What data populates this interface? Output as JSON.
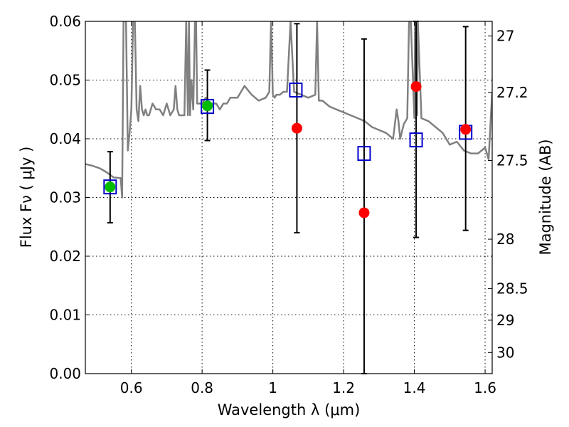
{
  "chart_data": {
    "type": "scatter",
    "xlabel": "Wavelength  λ (μm)",
    "ylabel": "Flux  Fν  ( μJy )",
    "ylabel_right": "Magnitude (AB)",
    "xlim": [
      0.47,
      1.62
    ],
    "ylim": [
      0.0,
      0.06
    ],
    "x_ticks": [
      0.6,
      0.8,
      1.0,
      1.2,
      1.4,
      1.6
    ],
    "x_tick_labels": [
      "0.6",
      "0.8",
      "1",
      "1.2",
      "1.4",
      "1.6"
    ],
    "y_ticks": [
      0.0,
      0.01,
      0.02,
      0.03,
      0.04,
      0.05,
      0.06
    ],
    "y_tick_labels": [
      "0.00",
      "0.01",
      "0.02",
      "0.03",
      "0.04",
      "0.05",
      "0.06"
    ],
    "right_ticks": [
      {
        "label": "27",
        "flux": 0.0575
      },
      {
        "label": "27.2",
        "flux": 0.0479
      },
      {
        "label": "27.5",
        "flux": 0.0363
      },
      {
        "label": "28",
        "flux": 0.0229
      },
      {
        "label": "28.5",
        "flux": 0.0145
      },
      {
        "label": "29",
        "flux": 0.0091
      },
      {
        "label": "30",
        "flux": 0.0036
      }
    ],
    "grid": true,
    "colors": {
      "model": "#808080",
      "model_photometry": "#0000cc",
      "detection": "#00bb00",
      "non_detection": "#ff0000",
      "errorbar": "#000000"
    },
    "series": [
      {
        "kind": "model_spectrum",
        "x": [
          0.47,
          0.49,
          0.51,
          0.53,
          0.55,
          0.57,
          0.574,
          0.578,
          0.58,
          0.585,
          0.59,
          0.595,
          0.6,
          0.605,
          0.61,
          0.615,
          0.62,
          0.625,
          0.63,
          0.635,
          0.64,
          0.645,
          0.65,
          0.66,
          0.67,
          0.68,
          0.69,
          0.7,
          0.71,
          0.72,
          0.725,
          0.73,
          0.735,
          0.74,
          0.75,
          0.755,
          0.76,
          0.763,
          0.766,
          0.77,
          0.775,
          0.78,
          0.783,
          0.786,
          0.79,
          0.8,
          0.81,
          0.82,
          0.83,
          0.84,
          0.85,
          0.86,
          0.87,
          0.88,
          0.9,
          0.92,
          0.94,
          0.96,
          0.98,
          0.99,
          0.995,
          1.0,
          1.005,
          1.01,
          1.02,
          1.03,
          1.04,
          1.05,
          1.06,
          1.08,
          1.1,
          1.12,
          1.125,
          1.13,
          1.14,
          1.16,
          1.18,
          1.2,
          1.22,
          1.24,
          1.26,
          1.28,
          1.3,
          1.32,
          1.34,
          1.35,
          1.355,
          1.36,
          1.37,
          1.38,
          1.385,
          1.39,
          1.4,
          1.402,
          1.405,
          1.408,
          1.41,
          1.42,
          1.44,
          1.46,
          1.48,
          1.5,
          1.52,
          1.54,
          1.56,
          1.58,
          1.6,
          1.61,
          1.62
        ],
        "y": [
          0.0357,
          0.0354,
          0.035,
          0.0343,
          0.0334,
          0.0333,
          0.03,
          0.06,
          0.06,
          0.06,
          0.038,
          0.041,
          0.045,
          0.06,
          0.06,
          0.045,
          0.043,
          0.049,
          0.045,
          0.044,
          0.045,
          0.044,
          0.044,
          0.046,
          0.045,
          0.045,
          0.044,
          0.046,
          0.044,
          0.045,
          0.049,
          0.045,
          0.044,
          0.044,
          0.044,
          0.06,
          0.044,
          0.06,
          0.044,
          0.05,
          0.045,
          0.06,
          0.06,
          0.046,
          0.046,
          0.046,
          0.047,
          0.046,
          0.046,
          0.046,
          0.045,
          0.046,
          0.046,
          0.047,
          0.047,
          0.049,
          0.0475,
          0.0465,
          0.047,
          0.048,
          0.06,
          0.0475,
          0.047,
          0.0475,
          0.0475,
          0.048,
          0.048,
          0.06,
          0.048,
          0.0475,
          0.047,
          0.0475,
          0.06,
          0.0465,
          0.0465,
          0.0455,
          0.045,
          0.0445,
          0.044,
          0.0435,
          0.043,
          0.042,
          0.0415,
          0.041,
          0.04,
          0.045,
          0.043,
          0.04,
          0.0425,
          0.0435,
          0.06,
          0.06,
          0.0435,
          0.06,
          0.06,
          0.044,
          0.06,
          0.0435,
          0.043,
          0.042,
          0.041,
          0.039,
          0.0395,
          0.038,
          0.0375,
          0.0375,
          0.0385,
          0.0365,
          0.048
        ]
      },
      {
        "kind": "model_photometry",
        "marker": "open-square",
        "x": [
          0.54,
          0.815,
          1.065,
          1.258,
          1.405,
          1.545
        ],
        "y": [
          0.0318,
          0.0455,
          0.0483,
          0.0375,
          0.0398,
          0.0411
        ]
      },
      {
        "kind": "observed_detection",
        "marker": "filled-circle",
        "x": [
          0.54,
          0.815
        ],
        "y": [
          0.0318,
          0.0456
        ],
        "yerr_low": [
          0.0257,
          0.0397
        ],
        "yerr_high": [
          0.0378,
          0.0517
        ]
      },
      {
        "kind": "observed_nondetection",
        "marker": "filled-circle",
        "x": [
          1.068,
          1.258,
          1.405,
          1.545
        ],
        "y": [
          0.0418,
          0.0274,
          0.0489,
          0.0416
        ],
        "yerr_low": [
          0.024,
          0.0,
          0.0232,
          0.0244
        ],
        "yerr_high": [
          0.0596,
          0.057,
          0.06,
          0.0591
        ]
      }
    ]
  }
}
